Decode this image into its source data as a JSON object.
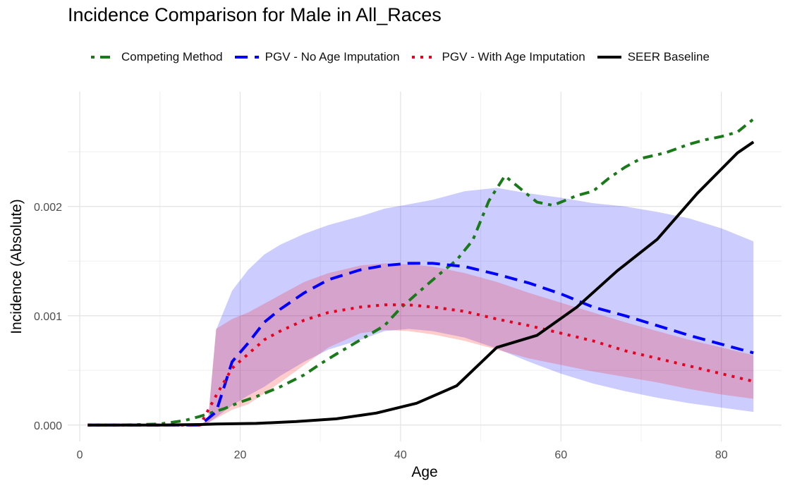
{
  "chart_data": {
    "type": "line",
    "title": "Incidence Comparison for Male in All_Races",
    "xlabel": "Age",
    "ylabel": "Incidence (Absolute)",
    "xlim": [
      -1.5,
      87.5
    ],
    "ylim": [
      -0.00015,
      0.00305
    ],
    "x_ticks": [
      0,
      20,
      40,
      60,
      80
    ],
    "x_tick_labels": [
      "0",
      "20",
      "40",
      "60",
      "80"
    ],
    "y_ticks": [
      0,
      0.001,
      0.002
    ],
    "y_tick_labels": [
      "0.000",
      "0.001",
      "0.002"
    ],
    "grid": true,
    "legend_position": "top",
    "series": [
      {
        "name": "Competing Method",
        "color": "#1a7a1a",
        "dash": "dotdash",
        "x": [
          1,
          5,
          10,
          13,
          15,
          18,
          20,
          22,
          25,
          28,
          30,
          32,
          35,
          38,
          40,
          42,
          45,
          47,
          49,
          51,
          53,
          55,
          57,
          59,
          60,
          62,
          64,
          66,
          68,
          70,
          73,
          76,
          78,
          80,
          82,
          84
        ],
        "y": [
          0,
          0,
          1e-05,
          4e-05,
          8e-05,
          0.00015,
          0.00021,
          0.00026,
          0.00035,
          0.00046,
          0.00056,
          0.00065,
          0.00078,
          0.00091,
          0.00107,
          0.0012,
          0.00139,
          0.00151,
          0.00169,
          0.00205,
          0.00228,
          0.00216,
          0.00204,
          0.00201,
          0.00204,
          0.0021,
          0.00214,
          0.00226,
          0.00236,
          0.00244,
          0.00249,
          0.00257,
          0.00261,
          0.00264,
          0.00268,
          0.0028
        ]
      },
      {
        "name": "PGV - No Age Imputation",
        "color": "#0000ff",
        "dash": "dashed",
        "x": [
          1,
          5,
          10,
          15,
          17,
          19,
          21,
          23,
          25,
          28,
          31,
          35,
          38,
          41,
          44,
          48,
          52,
          56,
          60,
          64,
          68,
          72,
          76,
          80,
          84
        ],
        "y": [
          0,
          0,
          0,
          0,
          0.00012,
          0.00058,
          0.00075,
          0.00094,
          0.00106,
          0.00121,
          0.00133,
          0.00142,
          0.00146,
          0.00148,
          0.00148,
          0.00145,
          0.00138,
          0.0013,
          0.0012,
          0.00108,
          0.001,
          0.00091,
          0.00082,
          0.00074,
          0.00066
        ]
      },
      {
        "name": "PGV - With Age Imputation",
        "color": "#e8001c",
        "dash": "dotted",
        "x": [
          1,
          5,
          10,
          15,
          17,
          19,
          21,
          23,
          25,
          28,
          31,
          35,
          38,
          41,
          44,
          48,
          52,
          56,
          60,
          64,
          68,
          72,
          76,
          80,
          84
        ],
        "y": [
          0,
          0,
          0,
          0,
          0.00027,
          0.00052,
          0.00065,
          0.00078,
          0.00086,
          0.00096,
          0.00103,
          0.00108,
          0.0011,
          0.0011,
          0.00108,
          0.00104,
          0.00097,
          0.00091,
          0.00084,
          0.00077,
          0.00068,
          0.00061,
          0.00054,
          0.00047,
          0.0004
        ]
      },
      {
        "name": "SEER Baseline",
        "color": "#000000",
        "dash": "solid",
        "x": [
          1,
          5,
          10,
          15,
          17,
          22,
          27,
          32,
          37,
          42,
          47,
          52,
          57,
          62,
          67,
          72,
          77,
          82,
          84
        ],
        "y": [
          0,
          0,
          0,
          5e-06,
          1e-05,
          1.5e-05,
          3.2e-05,
          5.7e-05,
          0.00011,
          0.0002,
          0.00036,
          0.00071,
          0.00082,
          0.00108,
          0.00141,
          0.0017,
          0.00212,
          0.00249,
          0.00259
        ]
      }
    ],
    "bands": [
      {
        "series": "PGV - No Age Imputation",
        "color": "#0000ff",
        "opacity": 0.2,
        "x": [
          1,
          10,
          15,
          16,
          17,
          19,
          21,
          23,
          25,
          28,
          31,
          35,
          38,
          41,
          44,
          48,
          52,
          56,
          60,
          64,
          68,
          72,
          76,
          80,
          84
        ],
        "lower": [
          0,
          0,
          0,
          2e-05,
          7e-05,
          0.00018,
          0.00027,
          0.00035,
          0.00045,
          0.00058,
          0.00069,
          0.00078,
          0.00086,
          0.00088,
          0.00086,
          0.0008,
          0.0007,
          0.00058,
          0.00047,
          0.00038,
          0.00031,
          0.00025,
          0.0002,
          0.00016,
          0.00012
        ],
        "upper": [
          0,
          0,
          0,
          5e-05,
          0.00087,
          0.00123,
          0.00142,
          0.00156,
          0.00165,
          0.00175,
          0.00183,
          0.00191,
          0.00198,
          0.00202,
          0.00206,
          0.00214,
          0.00217,
          0.00212,
          0.00208,
          0.00203,
          0.002,
          0.00195,
          0.00189,
          0.0018,
          0.00168
        ]
      },
      {
        "series": "PGV - With Age Imputation",
        "color": "#ff0000",
        "opacity": 0.2,
        "x": [
          1,
          10,
          15,
          16,
          17,
          19,
          21,
          23,
          25,
          28,
          31,
          35,
          38,
          41,
          44,
          48,
          52,
          56,
          60,
          64,
          68,
          72,
          76,
          80,
          84
        ],
        "lower": [
          0,
          0,
          0,
          2e-05,
          6e-05,
          0.00014,
          0.00019,
          0.00029,
          0.00039,
          0.00055,
          0.00071,
          0.00084,
          0.00087,
          0.00086,
          0.00083,
          0.00077,
          0.00069,
          0.00061,
          0.00055,
          0.00049,
          0.00044,
          0.00039,
          0.00033,
          0.00028,
          0.00024
        ],
        "upper": [
          0,
          0,
          0,
          5e-05,
          0.00088,
          0.00097,
          0.00103,
          0.00111,
          0.00119,
          0.00131,
          0.00139,
          0.00146,
          0.00148,
          0.00147,
          0.00145,
          0.00139,
          0.00131,
          0.00121,
          0.00112,
          0.00103,
          0.00094,
          0.00086,
          0.00078,
          0.00071,
          0.00064
        ]
      }
    ]
  }
}
